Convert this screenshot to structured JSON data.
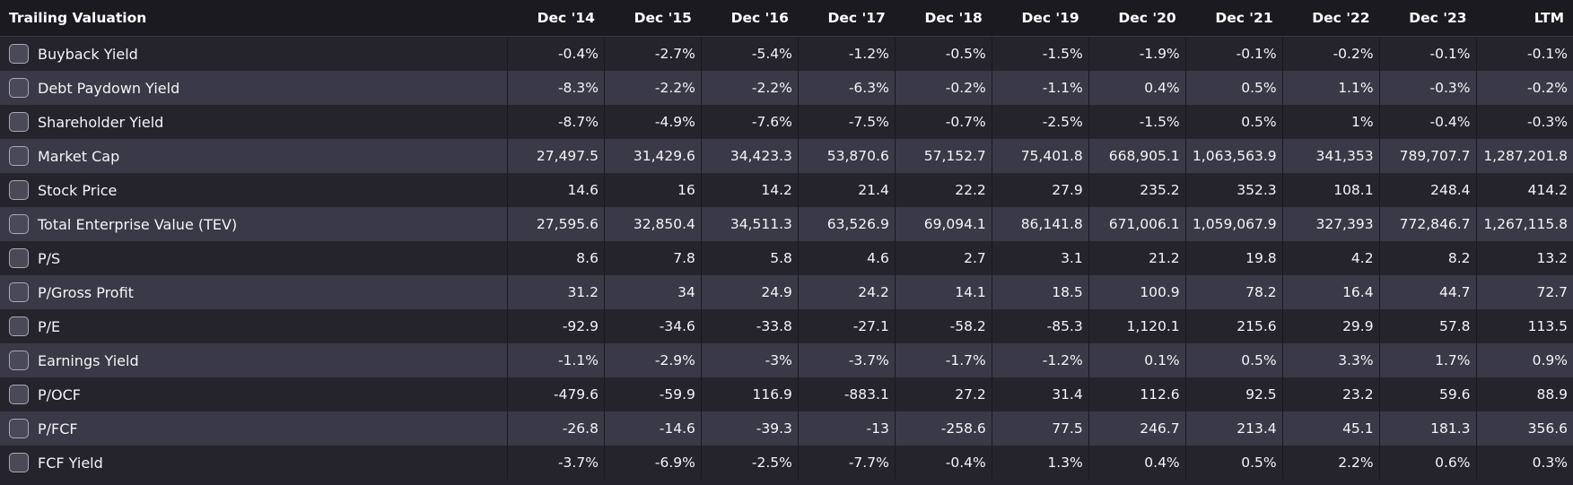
{
  "table": {
    "title": "Trailing Valuation",
    "columns": [
      "Dec '14",
      "Dec '15",
      "Dec '16",
      "Dec '17",
      "Dec '18",
      "Dec '19",
      "Dec '20",
      "Dec '21",
      "Dec '22",
      "Dec '23",
      "LTM"
    ],
    "rows": [
      {
        "label": "Buyback Yield",
        "values": [
          "-0.4%",
          "-2.7%",
          "-5.4%",
          "-1.2%",
          "-0.5%",
          "-1.5%",
          "-1.9%",
          "-0.1%",
          "-0.2%",
          "-0.1%",
          "-0.1%"
        ]
      },
      {
        "label": "Debt Paydown Yield",
        "values": [
          "-8.3%",
          "-2.2%",
          "-2.2%",
          "-6.3%",
          "-0.2%",
          "-1.1%",
          "0.4%",
          "0.5%",
          "1.1%",
          "-0.3%",
          "-0.2%"
        ]
      },
      {
        "label": "Shareholder Yield",
        "values": [
          "-8.7%",
          "-4.9%",
          "-7.6%",
          "-7.5%",
          "-0.7%",
          "-2.5%",
          "-1.5%",
          "0.5%",
          "1%",
          "-0.4%",
          "-0.3%"
        ]
      },
      {
        "label": "Market Cap",
        "values": [
          "27,497.5",
          "31,429.6",
          "34,423.3",
          "53,870.6",
          "57,152.7",
          "75,401.8",
          "668,905.1",
          "1,063,563.9",
          "341,353",
          "789,707.7",
          "1,287,201.8"
        ]
      },
      {
        "label": "Stock Price",
        "values": [
          "14.6",
          "16",
          "14.2",
          "21.4",
          "22.2",
          "27.9",
          "235.2",
          "352.3",
          "108.1",
          "248.4",
          "414.2"
        ]
      },
      {
        "label": "Total Enterprise Value (TEV)",
        "values": [
          "27,595.6",
          "32,850.4",
          "34,511.3",
          "63,526.9",
          "69,094.1",
          "86,141.8",
          "671,006.1",
          "1,059,067.9",
          "327,393",
          "772,846.7",
          "1,267,115.8"
        ]
      },
      {
        "label": "P/S",
        "values": [
          "8.6",
          "7.8",
          "5.8",
          "4.6",
          "2.7",
          "3.1",
          "21.2",
          "19.8",
          "4.2",
          "8.2",
          "13.2"
        ]
      },
      {
        "label": "P/Gross Profit",
        "values": [
          "31.2",
          "34",
          "24.9",
          "24.2",
          "14.1",
          "18.5",
          "100.9",
          "78.2",
          "16.4",
          "44.7",
          "72.7"
        ]
      },
      {
        "label": "P/E",
        "values": [
          "-92.9",
          "-34.6",
          "-33.8",
          "-27.1",
          "-58.2",
          "-85.3",
          "1,120.1",
          "215.6",
          "29.9",
          "57.8",
          "113.5"
        ]
      },
      {
        "label": "Earnings Yield",
        "values": [
          "-1.1%",
          "-2.9%",
          "-3%",
          "-3.7%",
          "-1.7%",
          "-1.2%",
          "0.1%",
          "0.5%",
          "3.3%",
          "1.7%",
          "0.9%"
        ]
      },
      {
        "label": "P/OCF",
        "values": [
          "-479.6",
          "-59.9",
          "116.9",
          "-883.1",
          "27.2",
          "31.4",
          "112.6",
          "92.5",
          "23.2",
          "59.6",
          "88.9"
        ]
      },
      {
        "label": "P/FCF",
        "values": [
          "-26.8",
          "-14.6",
          "-39.3",
          "-13",
          "-258.6",
          "77.5",
          "246.7",
          "213.4",
          "45.1",
          "181.3",
          "356.6"
        ]
      },
      {
        "label": "FCF Yield",
        "values": [
          "-3.7%",
          "-6.9%",
          "-2.5%",
          "-7.7%",
          "-0.4%",
          "1.3%",
          "0.4%",
          "0.5%",
          "2.2%",
          "0.6%",
          "0.3%"
        ]
      }
    ]
  },
  "colors": {
    "header_bg": "#1b1a21",
    "row_dark": "#25242d",
    "row_light": "#3a3947",
    "text": "#f4f4f6",
    "checkbox_border": "#a9a8b4",
    "checkbox_fill": "#4a4957"
  }
}
